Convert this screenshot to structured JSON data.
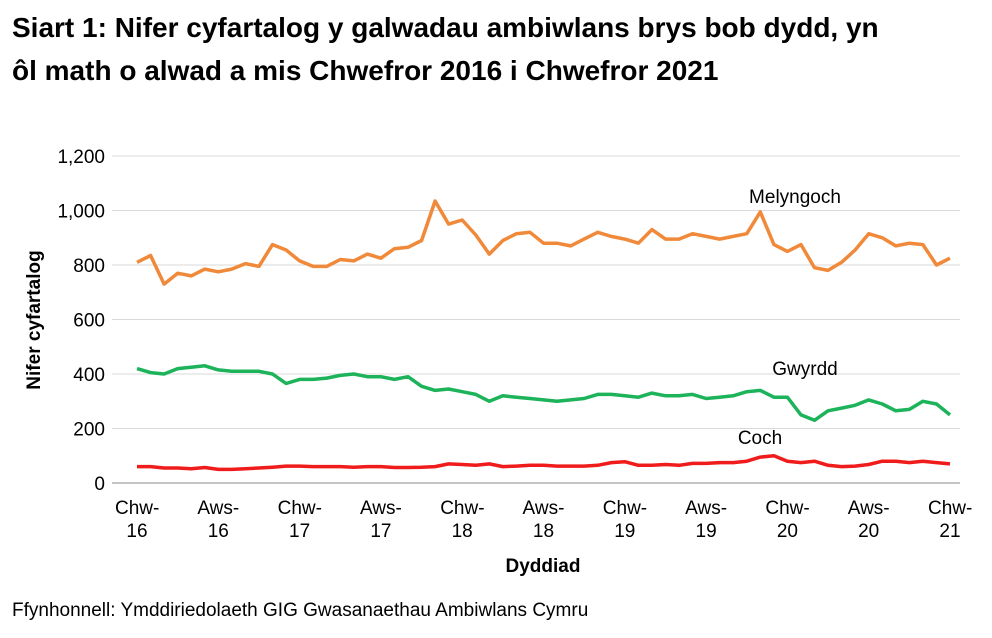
{
  "chart_data": {
    "type": "line",
    "title": "Siart 1: Nifer cyfartalog y galwadau ambiwlans brys bob dydd, yn ôl math o alwad a mis Chwefror 2016 i Chwefror 2021",
    "source": "Ffynhonnell: Ymddiriedolaeth GIG Gwasanaethau Ambiwlans Cymru",
    "x_label": "Dyddiad",
    "y_label": "Nifer cyfartalog",
    "categories": [
      "Chw-16",
      null,
      null,
      null,
      null,
      null,
      "Aws-16",
      null,
      null,
      null,
      null,
      null,
      "Chw-17",
      null,
      null,
      null,
      null,
      null,
      "Aws-17",
      null,
      null,
      null,
      null,
      null,
      "Chw-18",
      null,
      null,
      null,
      null,
      null,
      "Aws-18",
      null,
      null,
      null,
      null,
      null,
      "Chw-19",
      null,
      null,
      null,
      null,
      null,
      "Aws-19",
      null,
      null,
      null,
      null,
      null,
      "Chw-20",
      null,
      null,
      null,
      null,
      null,
      "Aws-20",
      null,
      null,
      null,
      null,
      null,
      "Chw-21"
    ],
    "ylim": [
      0,
      1200
    ],
    "yticks": [
      0,
      200,
      400,
      600,
      800,
      {
        "value": 1000,
        "label": "1,000"
      },
      {
        "value": 1200,
        "label": "1,200"
      }
    ],
    "grid": true,
    "series": [
      {
        "name": "Melyngoch",
        "color": "#f08a3a",
        "values": [
          810,
          835,
          730,
          770,
          760,
          785,
          775,
          785,
          805,
          795,
          875,
          855,
          815,
          795,
          795,
          820,
          815,
          840,
          825,
          860,
          865,
          890,
          1035,
          950,
          965,
          910,
          840,
          890,
          915,
          920,
          880,
          880,
          870,
          895,
          920,
          905,
          895,
          880,
          930,
          895,
          895,
          915,
          905,
          895,
          905,
          915,
          995,
          875,
          850,
          875,
          790,
          780,
          810,
          855,
          915,
          900,
          870,
          880,
          875,
          800,
          825
        ]
      },
      {
        "name": "Gwyrdd",
        "color": "#1db35a",
        "values": [
          420,
          405,
          400,
          420,
          425,
          430,
          415,
          410,
          410,
          410,
          400,
          365,
          380,
          380,
          385,
          395,
          400,
          390,
          390,
          380,
          390,
          355,
          340,
          345,
          335,
          325,
          300,
          320,
          315,
          310,
          305,
          300,
          305,
          310,
          325,
          325,
          320,
          315,
          330,
          320,
          320,
          325,
          310,
          315,
          320,
          335,
          340,
          315,
          315,
          250,
          230,
          265,
          275,
          285,
          305,
          290,
          265,
          270,
          300,
          290,
          250
        ]
      },
      {
        "name": "Coch",
        "color": "#f01c1c",
        "values": [
          60,
          60,
          55,
          55,
          52,
          57,
          50,
          50,
          52,
          55,
          58,
          62,
          62,
          60,
          60,
          60,
          58,
          60,
          60,
          57,
          57,
          58,
          60,
          70,
          68,
          65,
          70,
          60,
          62,
          65,
          65,
          62,
          62,
          62,
          65,
          75,
          78,
          65,
          65,
          68,
          65,
          72,
          72,
          75,
          75,
          80,
          95,
          100,
          80,
          75,
          80,
          65,
          60,
          62,
          68,
          80,
          80,
          75,
          80,
          75,
          70
        ]
      }
    ]
  }
}
